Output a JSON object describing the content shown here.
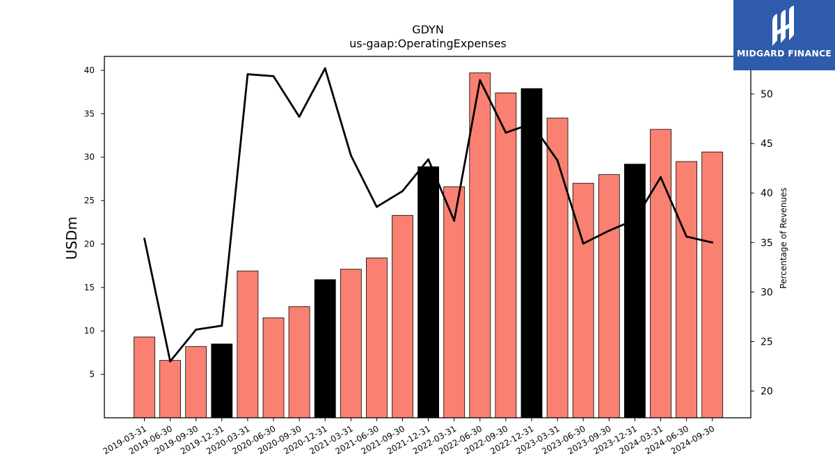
{
  "chart_data": {
    "type": "bar+line",
    "title": "GDYN",
    "subtitle": "us-gaap:OperatingExpenses",
    "ylabel": "USDm",
    "y2label": "Percentage of Revenues",
    "ylim": [
      0,
      41.6
    ],
    "y2lim": [
      17.3,
      53.8
    ],
    "yticks": [
      5,
      10,
      15,
      20,
      25,
      30,
      35,
      40
    ],
    "y2ticks": [
      20,
      25,
      30,
      35,
      40,
      45,
      50
    ],
    "categories": [
      "2019-03-31",
      "2019-06-30",
      "2019-09-30",
      "2019-12-31",
      "2020-03-31",
      "2020-06-30",
      "2020-09-30",
      "2020-12-31",
      "2021-03-31",
      "2021-06-30",
      "2021-09-30",
      "2021-12-31",
      "2022-03-31",
      "2022-06-30",
      "2022-09-30",
      "2022-12-31",
      "2023-03-31",
      "2023-06-30",
      "2023-09-30",
      "2023-12-31",
      "2024-03-31",
      "2024-06-30",
      "2024-09-30"
    ],
    "series": [
      {
        "type": "bar",
        "values": [
          9.3,
          6.6,
          8.2,
          8.5,
          16.9,
          11.5,
          12.8,
          15.9,
          17.1,
          18.4,
          23.3,
          28.9,
          26.6,
          39.7,
          37.4,
          37.9,
          34.5,
          27.0,
          28.0,
          29.2,
          33.2,
          29.5,
          30.6
        ],
        "colors": [
          "#fa8072",
          "#fa8072",
          "#fa8072",
          "#000000",
          "#fa8072",
          "#fa8072",
          "#fa8072",
          "#000000",
          "#fa8072",
          "#fa8072",
          "#fa8072",
          "#000000",
          "#fa8072",
          "#fa8072",
          "#fa8072",
          "#000000",
          "#fa8072",
          "#fa8072",
          "#fa8072",
          "#000000",
          "#fa8072",
          "#fa8072",
          "#fa8072"
        ]
      },
      {
        "type": "line",
        "axis": "right",
        "values": [
          35.4,
          23.0,
          26.2,
          26.6,
          52.0,
          51.8,
          47.7,
          52.6,
          43.8,
          38.6,
          40.2,
          43.4,
          37.2,
          51.4,
          46.1,
          47.0,
          43.3,
          34.9,
          36.2,
          37.3,
          41.6,
          35.6,
          35.0
        ],
        "color": "#000000"
      }
    ]
  },
  "logo": {
    "brand": "MIDGARD FINANCE",
    "color": "#2e5bab"
  }
}
